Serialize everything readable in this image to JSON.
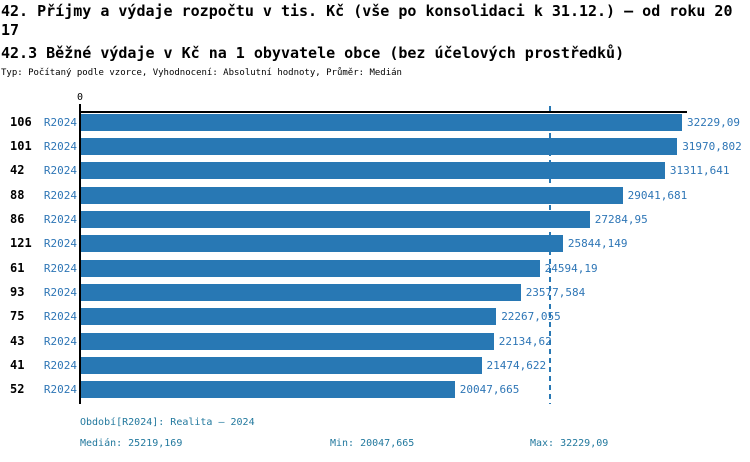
{
  "header": {
    "title": "42. Příjmy a výdaje rozpočtu v tis. Kč (vše po konsolidaci k 31.12.) – od roku 2017",
    "subtitle": "42.3 Běžné výdaje v Kč na 1 obyvatele obce (bez účelových prostředků)",
    "meta": "Typ: Počítaný podle vzorce, Vyhodnocení: Absolutní hodnoty, Průměr: Medián"
  },
  "chart_data": {
    "type": "bar",
    "orientation": "horizontal",
    "title": "42.3 Běžné výdaje v Kč na 1 obyvatele obce (bez účelových prostředků)",
    "xlabel": "",
    "ylabel": "",
    "grid": false,
    "legend_position": "none",
    "value_axis": {
      "zero_label": "0",
      "min": 0,
      "max": 32229.09
    },
    "categories": [
      "106",
      "101",
      "42",
      "88",
      "86",
      "121",
      "61",
      "93",
      "75",
      "43",
      "41",
      "52"
    ],
    "period_label": "R2024",
    "series": [
      {
        "name": "Realita – 2024",
        "values": [
          32229.09,
          31970.802,
          31311.641,
          29041.681,
          27284.95,
          25844.149,
          24594.19,
          23577.584,
          22267.055,
          22134.62,
          21474.622,
          20047.665
        ]
      }
    ],
    "value_labels": [
      "32229,09",
      "31970,802",
      "31311,641",
      "29041,681",
      "27284,95",
      "25844,149",
      "24594,19",
      "23577,584",
      "22267,055",
      "22134,62",
      "21474,622",
      "20047,665"
    ],
    "median": 25219.169,
    "annotations": {
      "median_line": true
    }
  },
  "footer": {
    "period_line": "Období[R2024]: Realita – 2024",
    "median_label": "Medián: 25219,169",
    "min_label": "Min: 20047,665",
    "max_label": "Max: 32229,09"
  },
  "colors": {
    "bar_fill": "#2878b4",
    "link_text": "#2e76b6",
    "footer_text": "#23799e",
    "axis": "#000000",
    "median_line": "#2878b4"
  }
}
